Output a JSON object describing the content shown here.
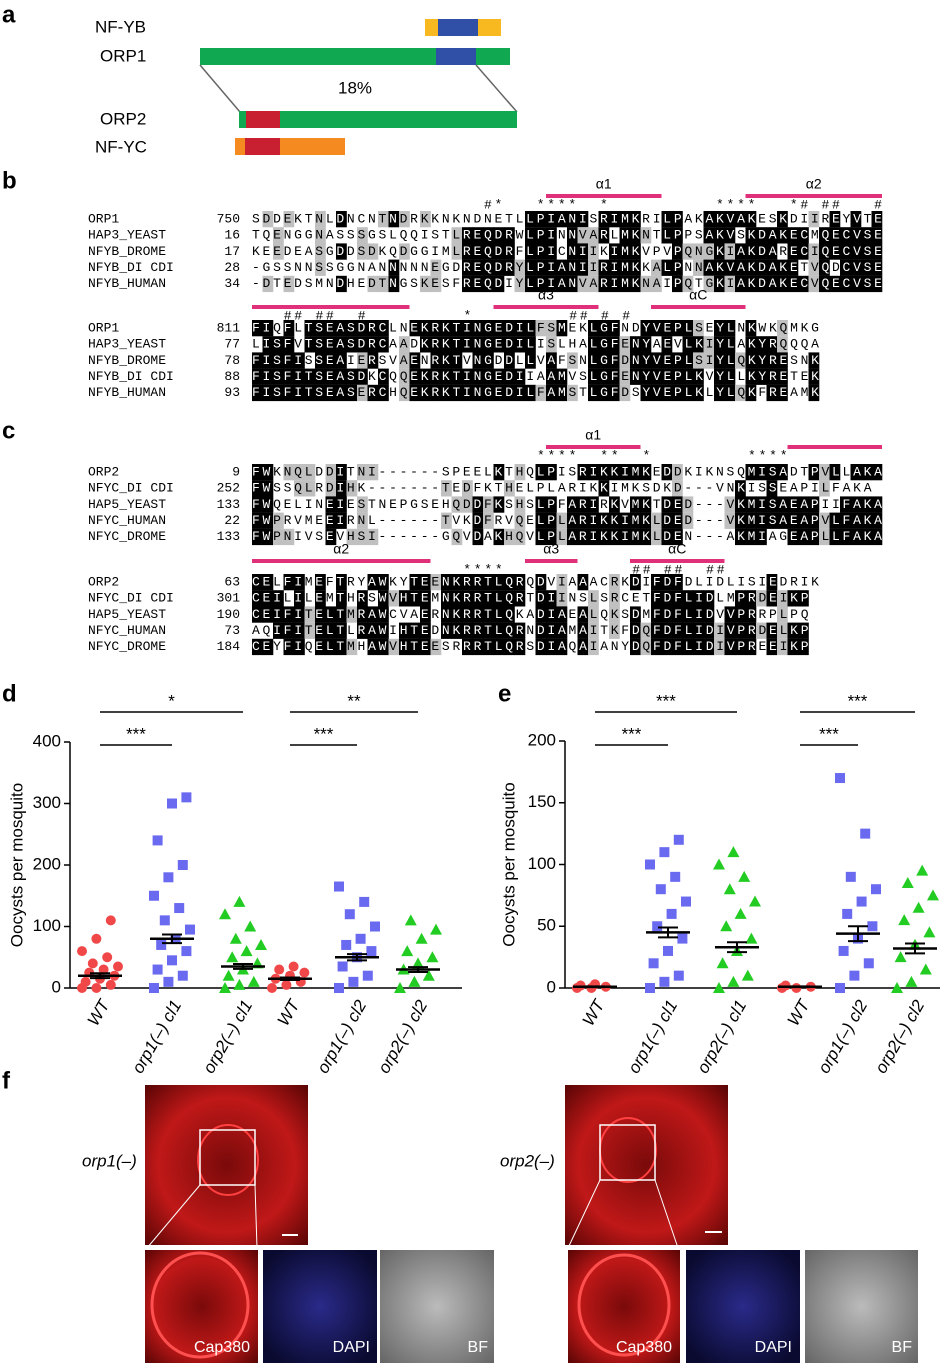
{
  "panels": {
    "a": "a",
    "b": "b",
    "c": "c",
    "d": "d",
    "e": "e",
    "f": "f"
  },
  "domains": {
    "nfyb": "NF-YB",
    "orp1": "ORP1",
    "identity": "18%",
    "orp2": "ORP2",
    "nfyc": "NF-YC"
  },
  "alignment_b": {
    "blocks": [
      {
        "helices": [
          "α1",
          "α2"
        ],
        "marks": "                      #*   ****  *          ****   *# ##   #",
        "rows": [
          {
            "name": "ORP1",
            "start": "750",
            "seq": "SDDEKTNLDNCNTNDRKKNKNDNETLLPIANISRIMKRILPAKAKVAKESKDIIREYVTE"
          },
          {
            "name": "HAP3_YEAST",
            "start": "16",
            "seq": "TQENGGNASSSGSLQQISTLREQDRWLPINNVARLMKNTLPPSAKVSKDAKECMQECVSE"
          },
          {
            "name": "NFYB_DROME",
            "start": "17",
            "seq": "KEEDEASGDDSDKQDGGIMLREQDRFLPICNIIKIMKVPVPQNGKIAKDARECIQECVSE"
          },
          {
            "name": "NFYB_DI CDI",
            "start": "28",
            "seq": "-GSSNNSSGGNANNNNNEGDREQDRYLPIANIIRIMKKALPNNAKVAKDAKETVQDCVSE"
          },
          {
            "name": "NFYB_HUMAN",
            "start": "34",
            "seq": "-DTEDSMNDHEDTNGSKESFREQDIYLPIANVARIMKNAIPQTGKIAKDAKECVQECVSE"
          }
        ]
      },
      {
        "helices": [
          "α3",
          "αC"
        ],
        "marks": "   ## ##  #         *         ## # #",
        "rows": [
          {
            "name": "ORP1",
            "start": "811",
            "seq": "FIQFLTSEASDRCLNEKRKTINGEDILFSMEKLGFNDYVEPLSEYLNKWKQMKG"
          },
          {
            "name": "HAP3_YEAST",
            "start": "77",
            "seq": "LISFVTSEASDRCAADKRKTINGEDILISLHALGFENYAEVLKIYLAKYRQQQA"
          },
          {
            "name": "NFYB_DROME",
            "start": "78",
            "seq": "FISFISSEAIERSVAENRKTVNGDDLLVAFSNLGFDNYVEPLSIYLQKYRESNK"
          },
          {
            "name": "NFYB_DI CDI",
            "start": "88",
            "seq": "FISFITSEASDKCQQEKRKTINGEDIIAAMVSLGFENYVEPLKVYLLKYRETEK"
          },
          {
            "name": "NFYB_HUMAN",
            "start": "93",
            "seq": "FISFITSEASERCHQEKRKTINGEDILFAMSTLGFDSYVEPLKLYLQKFREAMK"
          }
        ]
      }
    ]
  },
  "alignment_c": {
    "blocks": [
      {
        "helices": [
          "α1"
        ],
        "marks": "                           ****  **  *         ****",
        "rows": [
          {
            "name": "ORP2",
            "start": "9",
            "seq": "FWKNQLDDITNI------SPEELKTHQLPISRIKKIMKEDDKIKNSQMISADTPVLLAKA"
          },
          {
            "name": "NFYC_DI CDI",
            "start": "252",
            "seq": "FWSSQLRDIHK-------TEDFKTHELPLARIKKIMKSDKD---VNKISSEAPILFAKA"
          },
          {
            "name": "HAP5_YEAST",
            "start": "133",
            "seq": "FWQELINEIESTNEPGSEHQDDFKSHSLPFARIRKVMKTDED---VKMISAEAPIIFAKA"
          },
          {
            "name": "NFYC_HUMAN",
            "start": "22",
            "seq": "FWPRVMEEIRNL------TVKDFRVQELPLARIKKIMKLDED---VKMISAEAPVLFAKA"
          },
          {
            "name": "NFYC_DROME",
            "start": "133",
            "seq": "FWPNIVSEVHSI------GQVDAKHQVLPLARIKKIMKLDEN---AKMIAGEAPLLFAKA"
          }
        ]
      },
      {
        "helices": [
          "α2",
          "α3",
          "αC"
        ],
        "marks": "                    ****            ## ##  ##",
        "rows": [
          {
            "name": "ORP2",
            "start": "63",
            "seq": "CELFIMEFTRYAWKYTEENKRRTLQRQDVIAAACRKDIFDFDLIDLISIEDRIK"
          },
          {
            "name": "NFYC_DI CDI",
            "start": "301",
            "seq": "CEILILEMTHRSWVHTEMNKRRTLQRTDIINSLSRCETFDFLIDLMPRDEIKP"
          },
          {
            "name": "HAP5_YEAST",
            "start": "190",
            "seq": "CEIFITELTMRAWCVAERNKRRTLQKADIAEALQKSDMFDFLIDVVPRRPLPQ"
          },
          {
            "name": "NFYC_HUMAN",
            "start": "73",
            "seq": "AQIFITELTLRAWIHTEDNKRRTLQRNDIAMAITKFDQFDFLIDIVPRDELKP"
          },
          {
            "name": "NFYC_DROME",
            "start": "184",
            "seq": "CEYFIQELTMHAWVHTEESRRRTLQRSDIAQAIANYDQFDFLIDIVPREEIKP"
          }
        ]
      }
    ]
  },
  "chart_data": [
    {
      "type": "dot",
      "ylabel": "Oocysts per mosquito",
      "ylim": [
        0,
        400
      ],
      "yticks": [
        0,
        100,
        200,
        300,
        400
      ],
      "categories": [
        "WT",
        "orp1(–) cl1",
        "orp2(–) cl1",
        "WT",
        "orp1(–) cl2",
        "orp2(–) cl2"
      ],
      "colors": [
        "#f04848",
        "#6a6af0",
        "#22cc22",
        "#f04848",
        "#6a6af0",
        "#22cc22"
      ],
      "markers": [
        "circle",
        "square",
        "triangle",
        "circle",
        "square",
        "triangle"
      ],
      "points": [
        [
          0,
          0,
          5,
          10,
          15,
          20,
          25,
          30,
          35,
          40,
          50,
          60,
          80,
          110
        ],
        [
          0,
          10,
          20,
          30,
          45,
          60,
          70,
          80,
          95,
          110,
          130,
          150,
          180,
          200,
          240,
          300,
          310
        ],
        [
          0,
          5,
          10,
          20,
          30,
          40,
          50,
          60,
          70,
          80,
          100,
          120,
          140
        ],
        [
          0,
          5,
          10,
          15,
          20,
          25,
          30,
          35
        ],
        [
          0,
          10,
          20,
          35,
          50,
          60,
          70,
          80,
          100,
          120,
          140,
          165
        ],
        [
          0,
          10,
          20,
          30,
          40,
          50,
          60,
          80,
          95,
          110
        ]
      ],
      "means": [
        20,
        80,
        35,
        15,
        50,
        30
      ],
      "errors": [
        4,
        7,
        4,
        2,
        5,
        4
      ],
      "significance": [
        "***",
        "*",
        "***",
        "**"
      ]
    },
    {
      "type": "dot",
      "ylabel": "Oocysts per mosquito",
      "ylim": [
        0,
        200
      ],
      "yticks": [
        0,
        50,
        100,
        150,
        200
      ],
      "categories": [
        "WT",
        "orp1(–) cl1",
        "orp2(–) cl1",
        "WT",
        "orp1(–) cl2",
        "orp2(–) cl2"
      ],
      "colors": [
        "#f04848",
        "#6a6af0",
        "#22cc22",
        "#f04848",
        "#6a6af0",
        "#22cc22"
      ],
      "markers": [
        "circle",
        "square",
        "triangle",
        "circle",
        "square",
        "triangle"
      ],
      "points": [
        [
          0,
          0,
          1,
          2,
          3
        ],
        [
          0,
          5,
          10,
          20,
          30,
          40,
          50,
          60,
          70,
          80,
          90,
          100,
          110,
          120
        ],
        [
          0,
          5,
          10,
          20,
          30,
          40,
          50,
          60,
          70,
          80,
          90,
          100,
          110
        ],
        [
          0,
          0,
          1,
          2
        ],
        [
          0,
          10,
          20,
          30,
          40,
          50,
          60,
          70,
          80,
          90,
          125,
          170
        ],
        [
          0,
          5,
          15,
          25,
          35,
          45,
          55,
          65,
          75,
          85,
          95
        ]
      ],
      "means": [
        1,
        45,
        33,
        1,
        44,
        32
      ],
      "errors": [
        0.3,
        4,
        4,
        0.3,
        6,
        4
      ],
      "significance": [
        "***",
        "***",
        "***",
        "***"
      ]
    }
  ],
  "images": {
    "left": "orp1(–)",
    "right": "orp2(–)",
    "l1": "Cap380",
    "l2": "DAPI",
    "l3": "BF",
    "r1": "Cap380",
    "r2": "DAPI",
    "r3": "BF"
  }
}
